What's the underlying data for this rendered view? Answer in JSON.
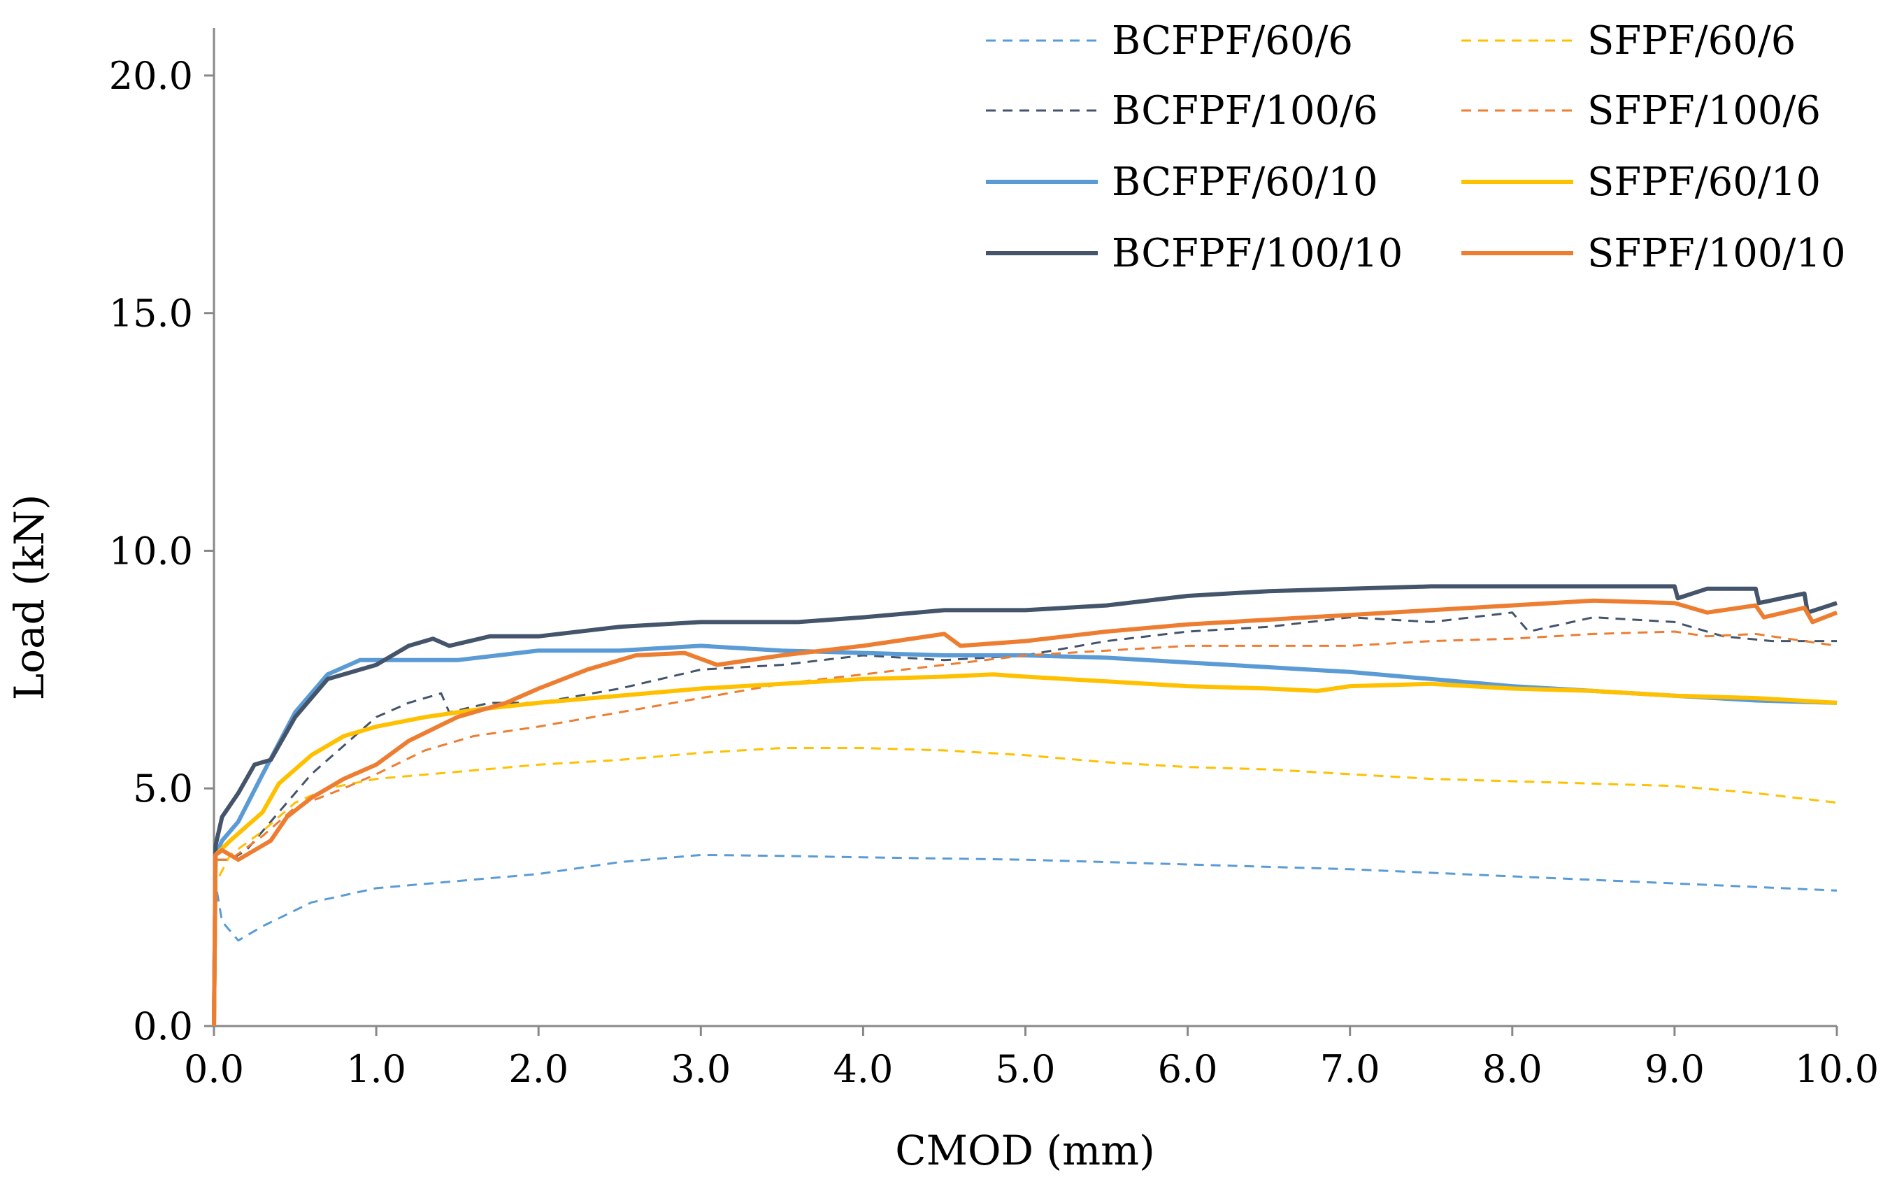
{
  "chart_data": {
    "type": "line",
    "title": "",
    "xlabel": "CMOD (mm)",
    "ylabel": "Load (kN)",
    "xlim": [
      0,
      10
    ],
    "ylim": [
      0,
      21
    ],
    "grid": false,
    "legend_position": "top-right",
    "x_ticks": [
      "0.0",
      "1.0",
      "2.0",
      "3.0",
      "4.0",
      "5.0",
      "6.0",
      "7.0",
      "8.0",
      "9.0",
      "10.0"
    ],
    "y_ticks": [
      "0.0",
      "5.0",
      "10.0",
      "15.0",
      "20.0"
    ],
    "series": [
      {
        "name": "BCFPF/60/6",
        "color": "#5B9BD5",
        "style": "dashed",
        "points": [
          [
            0,
            0
          ],
          [
            0.01,
            3.0
          ],
          [
            0.05,
            2.2
          ],
          [
            0.15,
            1.8
          ],
          [
            0.3,
            2.1
          ],
          [
            0.6,
            2.6
          ],
          [
            1.0,
            2.9
          ],
          [
            1.5,
            3.05
          ],
          [
            2.0,
            3.2
          ],
          [
            2.5,
            3.45
          ],
          [
            3.0,
            3.6
          ],
          [
            3.5,
            3.58
          ],
          [
            4.0,
            3.55
          ],
          [
            5.0,
            3.5
          ],
          [
            6.0,
            3.4
          ],
          [
            7.0,
            3.3
          ],
          [
            8.0,
            3.15
          ],
          [
            9.0,
            3.0
          ],
          [
            10.0,
            2.85
          ]
        ]
      },
      {
        "name": "BCFPF/100/6",
        "color": "#44546A",
        "style": "dashed",
        "points": [
          [
            0,
            0
          ],
          [
            0.01,
            3.5
          ],
          [
            0.1,
            3.5
          ],
          [
            0.2,
            3.7
          ],
          [
            0.4,
            4.5
          ],
          [
            0.6,
            5.3
          ],
          [
            0.8,
            5.9
          ],
          [
            1.0,
            6.5
          ],
          [
            1.2,
            6.8
          ],
          [
            1.4,
            7.0
          ],
          [
            1.45,
            6.6
          ],
          [
            1.7,
            6.8
          ],
          [
            2.0,
            6.8
          ],
          [
            2.5,
            7.1
          ],
          [
            3.0,
            7.5
          ],
          [
            3.5,
            7.6
          ],
          [
            4.0,
            7.8
          ],
          [
            4.5,
            7.7
          ],
          [
            5.0,
            7.8
          ],
          [
            5.5,
            8.1
          ],
          [
            6.0,
            8.3
          ],
          [
            6.5,
            8.4
          ],
          [
            7.0,
            8.6
          ],
          [
            7.5,
            8.5
          ],
          [
            8.0,
            8.7
          ],
          [
            8.1,
            8.3
          ],
          [
            8.5,
            8.6
          ],
          [
            9.0,
            8.5
          ],
          [
            9.3,
            8.2
          ],
          [
            9.6,
            8.1
          ],
          [
            10.0,
            8.1
          ]
        ]
      },
      {
        "name": "BCFPF/60/10",
        "color": "#5B9BD5",
        "style": "solid",
        "points": [
          [
            0,
            0
          ],
          [
            0.01,
            3.6
          ],
          [
            0.05,
            3.9
          ],
          [
            0.15,
            4.3
          ],
          [
            0.3,
            5.3
          ],
          [
            0.5,
            6.6
          ],
          [
            0.7,
            7.4
          ],
          [
            0.9,
            7.7
          ],
          [
            1.2,
            7.7
          ],
          [
            1.5,
            7.7
          ],
          [
            2.0,
            7.9
          ],
          [
            2.5,
            7.9
          ],
          [
            3.0,
            8.0
          ],
          [
            3.5,
            7.9
          ],
          [
            4.0,
            7.85
          ],
          [
            4.5,
            7.8
          ],
          [
            5.0,
            7.8
          ],
          [
            5.5,
            7.75
          ],
          [
            6.0,
            7.65
          ],
          [
            6.5,
            7.55
          ],
          [
            7.0,
            7.45
          ],
          [
            7.5,
            7.3
          ],
          [
            8.0,
            7.15
          ],
          [
            8.5,
            7.05
          ],
          [
            9.0,
            6.95
          ],
          [
            9.5,
            6.85
          ],
          [
            10.0,
            6.8
          ]
        ]
      },
      {
        "name": "BCFPF/100/10",
        "color": "#44546A",
        "style": "solid",
        "points": [
          [
            0,
            0
          ],
          [
            0.01,
            3.8
          ],
          [
            0.05,
            4.4
          ],
          [
            0.15,
            4.9
          ],
          [
            0.25,
            5.5
          ],
          [
            0.35,
            5.6
          ],
          [
            0.5,
            6.5
          ],
          [
            0.7,
            7.3
          ],
          [
            0.9,
            7.5
          ],
          [
            1.0,
            7.6
          ],
          [
            1.2,
            8.0
          ],
          [
            1.35,
            8.15
          ],
          [
            1.45,
            8.0
          ],
          [
            1.7,
            8.2
          ],
          [
            2.0,
            8.2
          ],
          [
            2.5,
            8.4
          ],
          [
            3.0,
            8.5
          ],
          [
            3.5,
            8.5
          ],
          [
            3.6,
            8.5
          ],
          [
            4.0,
            8.6
          ],
          [
            4.5,
            8.75
          ],
          [
            5.0,
            8.75
          ],
          [
            5.5,
            8.85
          ],
          [
            6.0,
            9.05
          ],
          [
            6.5,
            9.15
          ],
          [
            7.0,
            9.2
          ],
          [
            7.5,
            9.25
          ],
          [
            8.0,
            9.25
          ],
          [
            8.5,
            9.25
          ],
          [
            9.0,
            9.25
          ],
          [
            9.02,
            9.0
          ],
          [
            9.2,
            9.2
          ],
          [
            9.5,
            9.2
          ],
          [
            9.52,
            8.9
          ],
          [
            9.8,
            9.1
          ],
          [
            9.82,
            8.7
          ],
          [
            10.0,
            8.9
          ]
        ]
      },
      {
        "name": "SFPF/60/6",
        "color": "#FFC000",
        "style": "dashed",
        "points": [
          [
            0,
            0
          ],
          [
            0.01,
            3.0
          ],
          [
            0.1,
            3.6
          ],
          [
            0.3,
            4.1
          ],
          [
            0.5,
            4.7
          ],
          [
            0.7,
            5.0
          ],
          [
            1.0,
            5.2
          ],
          [
            1.5,
            5.35
          ],
          [
            2.0,
            5.5
          ],
          [
            2.5,
            5.6
          ],
          [
            3.0,
            5.75
          ],
          [
            3.5,
            5.85
          ],
          [
            4.0,
            5.85
          ],
          [
            4.5,
            5.8
          ],
          [
            5.0,
            5.7
          ],
          [
            5.5,
            5.55
          ],
          [
            6.0,
            5.45
          ],
          [
            6.5,
            5.4
          ],
          [
            7.0,
            5.3
          ],
          [
            7.5,
            5.2
          ],
          [
            8.0,
            5.15
          ],
          [
            8.5,
            5.1
          ],
          [
            9.0,
            5.05
          ],
          [
            9.5,
            4.9
          ],
          [
            10.0,
            4.7
          ]
        ]
      },
      {
        "name": "SFPF/100/6",
        "color": "#ED7D31",
        "style": "dashed",
        "points": [
          [
            0,
            0
          ],
          [
            0.01,
            3.5
          ],
          [
            0.1,
            3.5
          ],
          [
            0.3,
            4.0
          ],
          [
            0.5,
            4.6
          ],
          [
            0.8,
            5.0
          ],
          [
            1.0,
            5.3
          ],
          [
            1.3,
            5.8
          ],
          [
            1.6,
            6.1
          ],
          [
            2.0,
            6.3
          ],
          [
            2.5,
            6.6
          ],
          [
            3.0,
            6.9
          ],
          [
            3.5,
            7.2
          ],
          [
            4.0,
            7.4
          ],
          [
            4.5,
            7.6
          ],
          [
            5.0,
            7.8
          ],
          [
            5.5,
            7.9
          ],
          [
            6.0,
            8.0
          ],
          [
            6.5,
            8.0
          ],
          [
            7.0,
            8.0
          ],
          [
            7.5,
            8.1
          ],
          [
            8.0,
            8.15
          ],
          [
            8.5,
            8.25
          ],
          [
            9.0,
            8.3
          ],
          [
            9.2,
            8.2
          ],
          [
            9.5,
            8.25
          ],
          [
            9.8,
            8.1
          ],
          [
            10.0,
            8.0
          ]
        ]
      },
      {
        "name": "SFPF/60/10",
        "color": "#FFC000",
        "style": "solid",
        "points": [
          [
            0,
            0
          ],
          [
            0.01,
            3.6
          ],
          [
            0.1,
            3.9
          ],
          [
            0.3,
            4.5
          ],
          [
            0.4,
            5.1
          ],
          [
            0.6,
            5.7
          ],
          [
            0.8,
            6.1
          ],
          [
            1.0,
            6.3
          ],
          [
            1.3,
            6.5
          ],
          [
            1.6,
            6.65
          ],
          [
            2.0,
            6.8
          ],
          [
            2.5,
            6.95
          ],
          [
            3.0,
            7.1
          ],
          [
            3.5,
            7.2
          ],
          [
            4.0,
            7.3
          ],
          [
            4.5,
            7.35
          ],
          [
            4.8,
            7.4
          ],
          [
            5.0,
            7.35
          ],
          [
            5.5,
            7.25
          ],
          [
            6.0,
            7.15
          ],
          [
            6.5,
            7.1
          ],
          [
            6.8,
            7.05
          ],
          [
            7.0,
            7.15
          ],
          [
            7.5,
            7.2
          ],
          [
            8.0,
            7.1
          ],
          [
            8.5,
            7.05
          ],
          [
            9.0,
            6.95
          ],
          [
            9.5,
            6.9
          ],
          [
            10.0,
            6.8
          ]
        ]
      },
      {
        "name": "SFPF/100/10",
        "color": "#ED7D31",
        "style": "solid",
        "points": [
          [
            0,
            0
          ],
          [
            0.01,
            3.6
          ],
          [
            0.05,
            3.7
          ],
          [
            0.15,
            3.5
          ],
          [
            0.35,
            3.9
          ],
          [
            0.45,
            4.4
          ],
          [
            0.6,
            4.8
          ],
          [
            0.8,
            5.2
          ],
          [
            1.0,
            5.5
          ],
          [
            1.2,
            6.0
          ],
          [
            1.5,
            6.5
          ],
          [
            1.8,
            6.8
          ],
          [
            2.0,
            7.1
          ],
          [
            2.3,
            7.5
          ],
          [
            2.6,
            7.8
          ],
          [
            2.9,
            7.85
          ],
          [
            3.1,
            7.6
          ],
          [
            3.5,
            7.8
          ],
          [
            4.0,
            8.0
          ],
          [
            4.5,
            8.25
          ],
          [
            4.6,
            8.0
          ],
          [
            5.0,
            8.1
          ],
          [
            5.5,
            8.3
          ],
          [
            6.0,
            8.45
          ],
          [
            6.5,
            8.55
          ],
          [
            7.0,
            8.65
          ],
          [
            7.5,
            8.75
          ],
          [
            8.0,
            8.85
          ],
          [
            8.5,
            8.95
          ],
          [
            9.0,
            8.9
          ],
          [
            9.2,
            8.7
          ],
          [
            9.5,
            8.85
          ],
          [
            9.55,
            8.6
          ],
          [
            9.8,
            8.8
          ],
          [
            9.85,
            8.5
          ],
          [
            10.0,
            8.7
          ]
        ]
      }
    ]
  }
}
